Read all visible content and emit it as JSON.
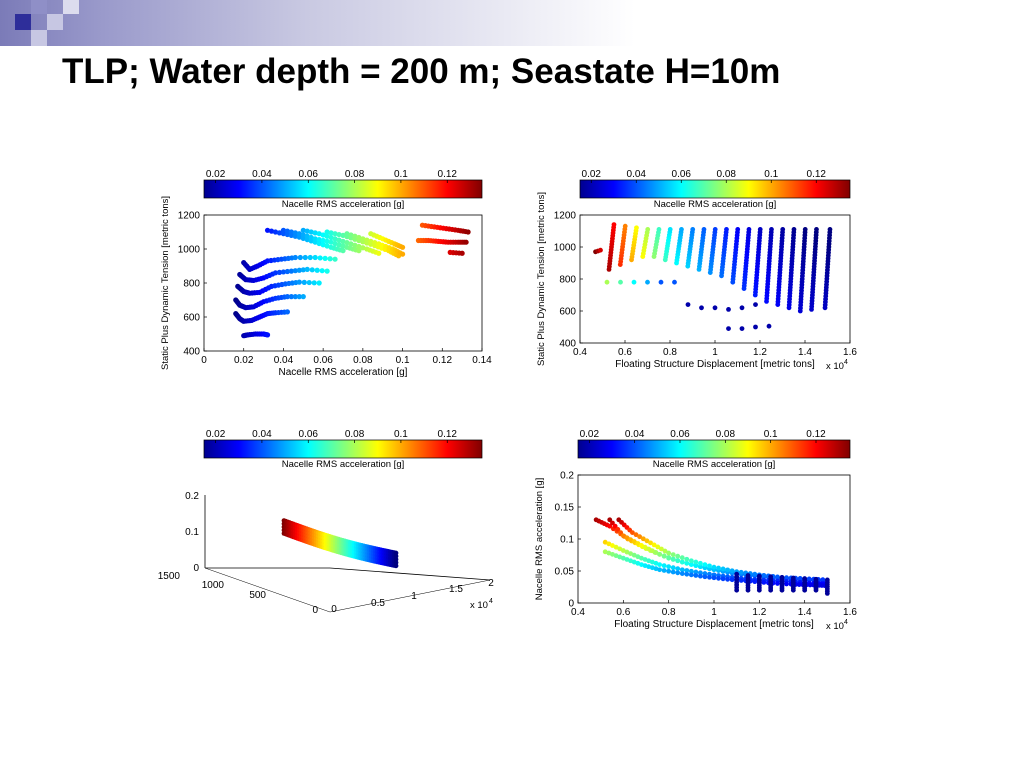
{
  "slide": {
    "title": "TLP; Water depth = 200 m; Seastate H=10m"
  },
  "colors": {
    "title_band": "#7b7bb8",
    "deco_square_dark": "#2e2e9a",
    "deco_square_mid": "#8f8fc7",
    "deco_square_light": "#c7c7e3",
    "colormap": "jet"
  },
  "chart_data": [
    {
      "id": "tension-vs-nacelle",
      "type": "scatter",
      "title": "",
      "xlabel": "Nacelle RMS acceleration [g]",
      "ylabel": "Static Plus Dynamic Tension [metric tons]",
      "xlim": [
        0,
        0.14
      ],
      "ylim": [
        400,
        1200
      ],
      "xticks": [
        "0",
        "0.02",
        "0.04",
        "0.06",
        "0.08",
        "0.1",
        "0.12",
        "0.14"
      ],
      "yticks": [
        "400",
        "600",
        "800",
        "1000",
        "1200"
      ],
      "colorbar": {
        "label": "Nacelle RMS acceleration [g]",
        "range": [
          0.015,
          0.135
        ],
        "ticks": [
          "0.02",
          "0.04",
          "0.06",
          "0.08",
          "0.1",
          "0.12"
        ]
      },
      "series": [
        {
          "x": [
            0.02,
            0.022,
            0.026,
            0.03,
            0.032
          ],
          "y": [
            490,
            495,
            500,
            500,
            495
          ]
        },
        {
          "x": [
            0.016,
            0.018,
            0.02,
            0.024,
            0.028,
            0.032,
            0.036,
            0.042
          ],
          "y": [
            620,
            590,
            575,
            580,
            600,
            620,
            625,
            630
          ]
        },
        {
          "x": [
            0.016,
            0.018,
            0.021,
            0.025,
            0.03,
            0.036,
            0.042,
            0.05
          ],
          "y": [
            700,
            670,
            655,
            660,
            690,
            710,
            720,
            720
          ]
        },
        {
          "x": [
            0.017,
            0.02,
            0.023,
            0.028,
            0.034,
            0.041,
            0.048,
            0.058
          ],
          "y": [
            780,
            750,
            740,
            745,
            780,
            795,
            805,
            800
          ]
        },
        {
          "x": [
            0.018,
            0.021,
            0.025,
            0.03,
            0.036,
            0.044,
            0.052,
            0.062
          ],
          "y": [
            850,
            820,
            815,
            830,
            860,
            870,
            880,
            870
          ]
        },
        {
          "x": [
            0.02,
            0.023,
            0.027,
            0.032,
            0.039,
            0.046,
            0.056,
            0.066
          ],
          "y": [
            920,
            880,
            900,
            930,
            940,
            950,
            950,
            940
          ]
        },
        {
          "x": [
            0.032,
            0.04,
            0.048,
            0.056,
            0.064,
            0.07
          ],
          "y": [
            1110,
            1090,
            1070,
            1040,
            1010,
            990
          ]
        },
        {
          "x": [
            0.04,
            0.048,
            0.056,
            0.064,
            0.072,
            0.078
          ],
          "y": [
            1110,
            1090,
            1060,
            1040,
            1010,
            990
          ]
        },
        {
          "x": [
            0.05,
            0.058,
            0.066,
            0.074,
            0.082,
            0.088
          ],
          "y": [
            1110,
            1090,
            1060,
            1030,
            1000,
            975
          ]
        },
        {
          "x": [
            0.062,
            0.07,
            0.078,
            0.086,
            0.093,
            0.098
          ],
          "y": [
            1100,
            1080,
            1050,
            1020,
            990,
            960
          ]
        },
        {
          "x": [
            0.072,
            0.08,
            0.088,
            0.095,
            0.1
          ],
          "y": [
            1090,
            1060,
            1030,
            1000,
            970
          ]
        },
        {
          "x": [
            0.084,
            0.09,
            0.096,
            0.1
          ],
          "y": [
            1090,
            1060,
            1030,
            1010
          ]
        },
        {
          "x": [
            0.11,
            0.116,
            0.122,
            0.128,
            0.133
          ],
          "y": [
            1140,
            1130,
            1120,
            1110,
            1100
          ]
        },
        {
          "x": [
            0.108,
            0.113,
            0.118,
            0.123,
            0.128,
            0.132
          ],
          "y": [
            1050,
            1050,
            1045,
            1040,
            1040,
            1040
          ]
        },
        {
          "x": [
            0.124,
            0.13
          ],
          "y": [
            980,
            975
          ]
        }
      ]
    },
    {
      "id": "tension-vs-displacement",
      "type": "scatter",
      "title": "",
      "xlabel": "Floating Structure Displacement [metric tons]",
      "ylabel": "Static Plus Dynamic Tension [metric tons]",
      "x_multiplier": "x 10^4",
      "xlim": [
        4000,
        16000
      ],
      "ylim": [
        400,
        1200
      ],
      "xticks": [
        "0.4",
        "0.6",
        "0.8",
        "1",
        "1.2",
        "1.4",
        "1.6"
      ],
      "yticks": [
        "400",
        "600",
        "800",
        "1000",
        "1200"
      ],
      "colorbar": {
        "label": "Nacelle RMS acceleration [g]",
        "range": [
          0.015,
          0.135
        ],
        "ticks": [
          "0.02",
          "0.04",
          "0.06",
          "0.08",
          "0.1",
          "0.12"
        ]
      },
      "columns": [
        {
          "x": 4800,
          "ymin": 970,
          "ymax": 980,
          "c": 0.13
        },
        {
          "x": 5400,
          "ymin": 860,
          "ymax": 1140,
          "c": 0.125
        },
        {
          "x": 5900,
          "ymin": 890,
          "ymax": 1130,
          "c": 0.11
        },
        {
          "x": 6400,
          "ymin": 920,
          "ymax": 1120,
          "c": 0.095
        },
        {
          "x": 6900,
          "ymin": 940,
          "ymax": 1110,
          "c": 0.085
        },
        {
          "x": 7400,
          "ymin": 940,
          "ymax": 1110,
          "c": 0.072
        },
        {
          "x": 7900,
          "ymin": 920,
          "ymax": 1110,
          "c": 0.062
        },
        {
          "x": 8400,
          "ymin": 900,
          "ymax": 1110,
          "c": 0.055
        },
        {
          "x": 8900,
          "ymin": 880,
          "ymax": 1110,
          "c": 0.05
        },
        {
          "x": 9400,
          "ymin": 860,
          "ymax": 1110,
          "c": 0.046
        },
        {
          "x": 9900,
          "ymin": 840,
          "ymax": 1110,
          "c": 0.042
        },
        {
          "x": 10400,
          "ymin": 820,
          "ymax": 1110,
          "c": 0.038
        },
        {
          "x": 10900,
          "ymin": 780,
          "ymax": 1110,
          "c": 0.034
        },
        {
          "x": 11400,
          "ymin": 740,
          "ymax": 1110,
          "c": 0.031
        },
        {
          "x": 11900,
          "ymin": 700,
          "ymax": 1110,
          "c": 0.028
        },
        {
          "x": 12400,
          "ymin": 660,
          "ymax": 1110,
          "c": 0.026
        },
        {
          "x": 12900,
          "ymin": 640,
          "ymax": 1110,
          "c": 0.024
        },
        {
          "x": 13400,
          "ymin": 620,
          "ymax": 1110,
          "c": 0.022
        },
        {
          "x": 13900,
          "ymin": 600,
          "ymax": 1110,
          "c": 0.02
        },
        {
          "x": 14400,
          "ymin": 610,
          "ymax": 1110,
          "c": 0.019
        },
        {
          "x": 15000,
          "ymin": 620,
          "ymax": 1110,
          "c": 0.018
        }
      ],
      "points": [
        {
          "x": 5200,
          "y": 780,
          "c": 0.08
        },
        {
          "x": 5800,
          "y": 780,
          "c": 0.07
        },
        {
          "x": 6400,
          "y": 780,
          "c": 0.06
        },
        {
          "x": 7000,
          "y": 780,
          "c": 0.05
        },
        {
          "x": 7600,
          "y": 780,
          "c": 0.04
        },
        {
          "x": 8200,
          "y": 780,
          "c": 0.04
        },
        {
          "x": 8800,
          "y": 640,
          "c": 0.02
        },
        {
          "x": 9400,
          "y": 620,
          "c": 0.02
        },
        {
          "x": 10000,
          "y": 620,
          "c": 0.02
        },
        {
          "x": 10600,
          "y": 610,
          "c": 0.02
        },
        {
          "x": 11200,
          "y": 620,
          "c": 0.02
        },
        {
          "x": 11800,
          "y": 640,
          "c": 0.02
        },
        {
          "x": 10600,
          "y": 490,
          "c": 0.02
        },
        {
          "x": 11200,
          "y": 490,
          "c": 0.02
        },
        {
          "x": 11800,
          "y": 500,
          "c": 0.02
        },
        {
          "x": 12400,
          "y": 505,
          "c": 0.02
        }
      ]
    },
    {
      "id": "3d-scatter",
      "type": "scatter",
      "title": "",
      "xlabel": "",
      "ylabel": "",
      "x_multiplier": "x 10^4",
      "z_ticks": [
        "0",
        "0.1",
        "0.2"
      ],
      "y_ticks": [
        "0",
        "500",
        "1000",
        "1500"
      ],
      "x_ticks": [
        "0",
        "0.5",
        "1",
        "1.5",
        "2"
      ],
      "colorbar": {
        "label": "Nacelle RMS acceleration [g]",
        "range": [
          0.015,
          0.135
        ],
        "ticks": [
          "0.02",
          "0.04",
          "0.06",
          "0.08",
          "0.1",
          "0.12"
        ]
      }
    },
    {
      "id": "nacelle-vs-displacement",
      "type": "scatter",
      "title": "",
      "xlabel": "Floating Structure Displacement [metric tons]",
      "ylabel": "Nacelle RMS acceleration [g]",
      "x_multiplier": "x 10^4",
      "xlim": [
        4000,
        16000
      ],
      "ylim": [
        0,
        0.2
      ],
      "xticks": [
        "0.4",
        "0.6",
        "0.8",
        "1",
        "1.2",
        "1.4",
        "1.6"
      ],
      "yticks": [
        "0",
        "0.05",
        "0.1",
        "0.15",
        "0.2"
      ],
      "colorbar": {
        "label": "Nacelle RMS acceleration [g]",
        "range": [
          0.015,
          0.135
        ],
        "ticks": [
          "0.02",
          "0.04",
          "0.06",
          "0.08",
          "0.1",
          "0.12"
        ]
      },
      "series": [
        {
          "x": [
            4800,
            5400,
            6200,
            7000,
            8000,
            9000,
            10000,
            11000,
            12000,
            13000,
            14000,
            15000
          ],
          "y": [
            0.13,
            0.12,
            0.1,
            0.085,
            0.07,
            0.06,
            0.052,
            0.046,
            0.042,
            0.039,
            0.037,
            0.035
          ]
        },
        {
          "x": [
            5400,
            6000,
            6800,
            7600,
            8600,
            9600,
            10600,
            11600,
            12600,
            13600,
            14600
          ],
          "y": [
            0.13,
            0.105,
            0.09,
            0.076,
            0.064,
            0.055,
            0.048,
            0.043,
            0.04,
            0.037,
            0.035
          ]
        },
        {
          "x": [
            5800,
            6400,
            7200,
            8000,
            9000,
            10000,
            11000,
            12000,
            13000,
            14000,
            15000
          ],
          "y": [
            0.13,
            0.11,
            0.094,
            0.078,
            0.066,
            0.056,
            0.049,
            0.044,
            0.04,
            0.038,
            0.036
          ]
        },
        {
          "x": [
            5200,
            6000,
            6800,
            7600,
            8600,
            9600,
            10600,
            11600,
            12600,
            13600,
            14600,
            15000
          ],
          "y": [
            0.095,
            0.082,
            0.07,
            0.06,
            0.052,
            0.046,
            0.041,
            0.037,
            0.035,
            0.033,
            0.03,
            0.03
          ]
        },
        {
          "x": [
            5200,
            6000,
            6800,
            7600,
            8600,
            9600,
            10600,
            11600,
            12600,
            13600,
            14400,
            15000
          ],
          "y": [
            0.08,
            0.07,
            0.06,
            0.052,
            0.046,
            0.041,
            0.037,
            0.034,
            0.031,
            0.029,
            0.028,
            0.027
          ]
        }
      ],
      "drops": [
        {
          "x": 11000,
          "y": [
            0.045,
            0.02
          ]
        },
        {
          "x": 11500,
          "y": [
            0.043,
            0.02
          ]
        },
        {
          "x": 12000,
          "y": [
            0.042,
            0.02
          ]
        },
        {
          "x": 12500,
          "y": [
            0.041,
            0.02
          ]
        },
        {
          "x": 13000,
          "y": [
            0.04,
            0.02
          ]
        },
        {
          "x": 13500,
          "y": [
            0.039,
            0.02
          ]
        },
        {
          "x": 14000,
          "y": [
            0.038,
            0.02
          ]
        },
        {
          "x": 14500,
          "y": [
            0.037,
            0.02
          ]
        },
        {
          "x": 15000,
          "y": [
            0.036,
            0.015
          ]
        }
      ]
    }
  ]
}
